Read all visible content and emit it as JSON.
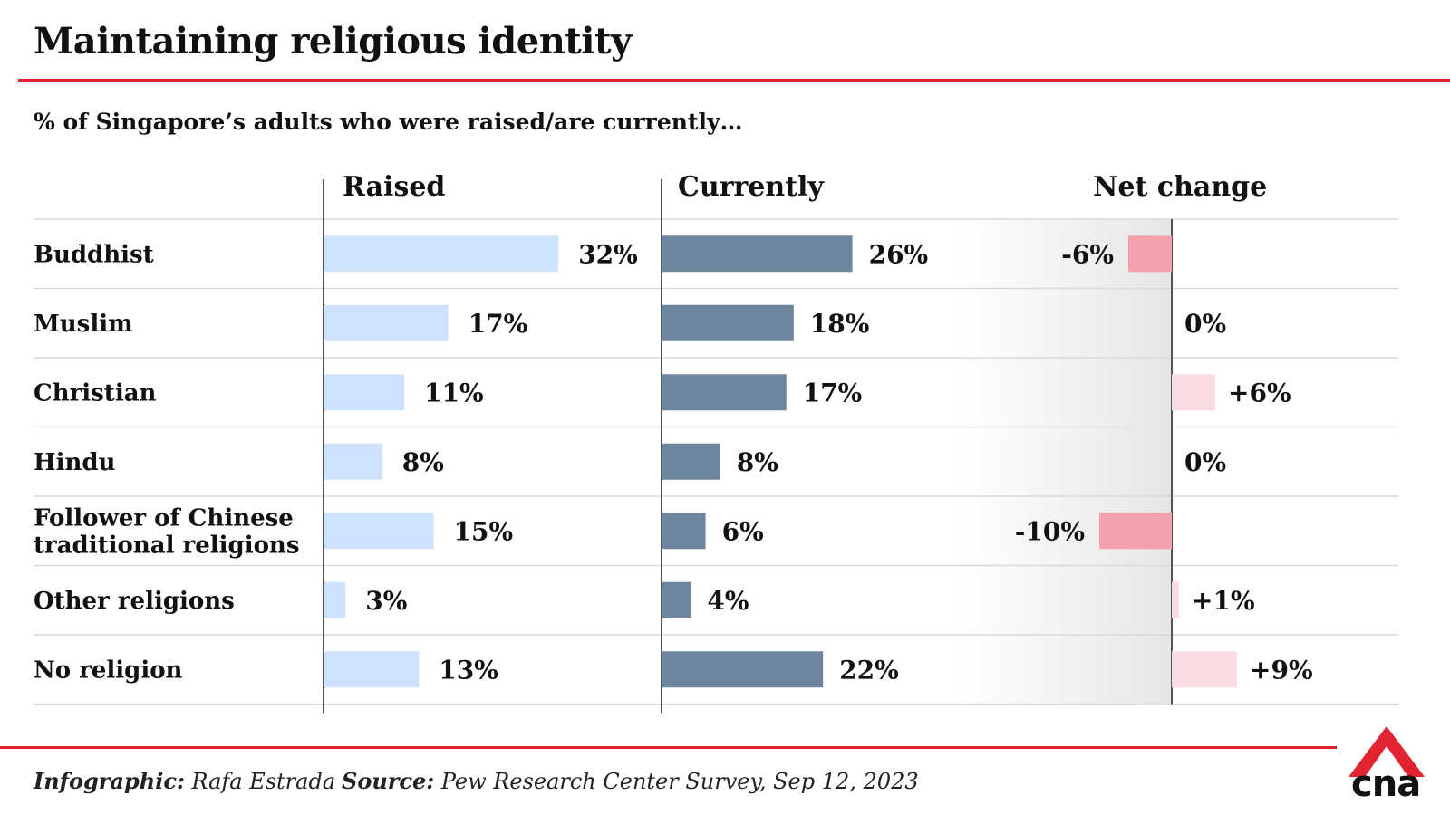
{
  "title": "Maintaining religious identity",
  "subtitle": "% of Singapore’s adults who were raised/are currently…",
  "chart_data": {
    "type": "bar",
    "columns": [
      "Raised",
      "Currently",
      "Net change"
    ],
    "categories": [
      [
        "Buddhist"
      ],
      [
        "Muslim"
      ],
      [
        "Christian"
      ],
      [
        "Hindu"
      ],
      [
        "Follower of Chinese",
        "traditional religions"
      ],
      [
        "Other religions"
      ],
      [
        "No religion"
      ]
    ],
    "series": [
      {
        "name": "Raised",
        "values": [
          32,
          17,
          11,
          8,
          15,
          3,
          13
        ],
        "labels": [
          "32%",
          "17%",
          "11%",
          "8%",
          "15%",
          "3%",
          "13%"
        ],
        "color": "#cfe2fb"
      },
      {
        "name": "Currently",
        "values": [
          26,
          18,
          17,
          8,
          6,
          4,
          22
        ],
        "labels": [
          "26%",
          "18%",
          "17%",
          "8%",
          "6%",
          "4%",
          "22%"
        ],
        "color": "#6e85a0"
      },
      {
        "name": "Net change",
        "values": [
          -6,
          0,
          6,
          0,
          -10,
          1,
          9
        ],
        "labels": [
          "-6%",
          "0%",
          "+6%",
          "0%",
          "-10%",
          "+1%",
          "+9%"
        ],
        "negative_color": "#f2a1ad",
        "positive_color": "#fadde2"
      }
    ],
    "unit": "%"
  },
  "footer": {
    "credit_label": "Infographic:",
    "credit_name": "Rafa Estrada",
    "source_label": "Source:",
    "source_text": "Pew Research Center Survey, Sep 12, 2023"
  },
  "logo": {
    "text": "cna",
    "color": "#e1242f"
  }
}
